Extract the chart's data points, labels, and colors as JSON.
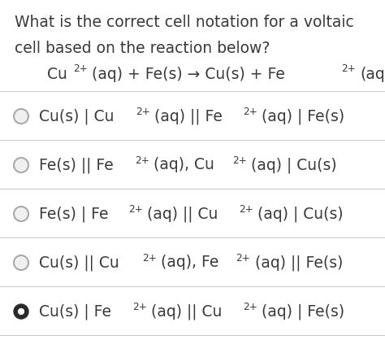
{
  "background_color": "#ffffff",
  "text_color": "#3a3a3a",
  "line_color": "#cccccc",
  "circle_edge_color": "#aaaaaa",
  "filled_circle_color": "#2a2a2a",
  "question_lines": [
    "What is the correct cell notation for a voltaic",
    "cell based on the reaction below?"
  ],
  "reaction_parts": [
    {
      "text": "Cu",
      "sup": "2+",
      "after": "(aq) + Fe(s) → Cu(s) + Fe",
      "sup2": "2+",
      "end": "(aq)"
    }
  ],
  "options_plain": [
    "Cu(s) | Cu^{2+}(aq) || Fe^{2+}(aq) | Fe(s)",
    "Fe(s) || Fe^{2+}(aq), Cu^{2+}(aq) | Cu(s)",
    "Fe(s) | Fe^{2+}(aq) || Cu^{2+}(aq) | Cu(s)",
    "Cu(s) || Cu^{2+}(aq), Fe^{2+}(aq) || Fe(s)",
    "Cu(s) | Fe^{2+}(aq) || Cu^{2+}(aq) | Fe(s)"
  ],
  "correct_index": 4,
  "font_size_question": 13.5,
  "font_size_reaction": 13.5,
  "font_size_option": 13.5
}
